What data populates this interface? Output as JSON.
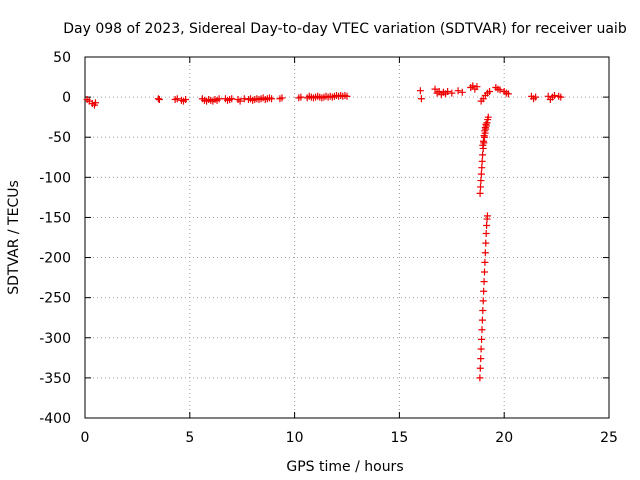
{
  "chart_data": {
    "type": "scatter",
    "title": "Day 098 of 2023, Sidereal Day-to-day VTEC variation (SDTVAR) for receiver uaib",
    "xlabel": "GPS time / hours",
    "ylabel": "SDTVAR / TECUs",
    "xlim": [
      0,
      25
    ],
    "ylim": [
      -400,
      50
    ],
    "xticks": [
      0,
      5,
      10,
      15,
      20,
      25
    ],
    "xtick_labels": [
      "0",
      "5",
      "10",
      "15",
      "20",
      "25"
    ],
    "yticks": [
      50,
      0,
      -50,
      -100,
      -150,
      -200,
      -250,
      -300,
      -350,
      -400
    ],
    "ytick_labels": [
      "50",
      "0",
      "-50",
      "-100",
      "-150",
      "-200",
      "-250",
      "-300",
      "-350",
      "-400"
    ],
    "grid": true,
    "marker": "+",
    "color": "#ee0000",
    "series": [
      {
        "name": "SDTVAR",
        "points": [
          [
            0.1,
            -3
          ],
          [
            0.2,
            -5
          ],
          [
            0.35,
            -8
          ],
          [
            0.45,
            -10
          ],
          [
            0.5,
            -7
          ],
          [
            3.5,
            -2
          ],
          [
            3.55,
            -3
          ],
          [
            4.3,
            -3
          ],
          [
            4.4,
            -2
          ],
          [
            4.6,
            -4
          ],
          [
            4.7,
            -5
          ],
          [
            4.8,
            -3
          ],
          [
            5.6,
            -2
          ],
          [
            5.7,
            -4
          ],
          [
            5.8,
            -5
          ],
          [
            5.9,
            -3
          ],
          [
            6.0,
            -4
          ],
          [
            6.1,
            -5
          ],
          [
            6.2,
            -3
          ],
          [
            6.3,
            -4
          ],
          [
            6.4,
            -2
          ],
          [
            6.7,
            -2
          ],
          [
            6.8,
            -4
          ],
          [
            6.9,
            -3
          ],
          [
            7.0,
            -2
          ],
          [
            7.3,
            -3
          ],
          [
            7.4,
            -5
          ],
          [
            7.6,
            -2
          ],
          [
            7.8,
            -3
          ],
          [
            7.9,
            -2
          ],
          [
            8.0,
            -4
          ],
          [
            8.1,
            -3
          ],
          [
            8.2,
            -2
          ],
          [
            8.3,
            -3
          ],
          [
            8.4,
            -2
          ],
          [
            8.5,
            -1
          ],
          [
            8.6,
            -3
          ],
          [
            8.7,
            -2
          ],
          [
            8.8,
            -1
          ],
          [
            8.9,
            -2
          ],
          [
            9.3,
            -2
          ],
          [
            9.4,
            -1
          ],
          [
            10.2,
            -1
          ],
          [
            10.3,
            0
          ],
          [
            10.6,
            -1
          ],
          [
            10.7,
            1
          ],
          [
            10.8,
            0
          ],
          [
            10.9,
            -1
          ],
          [
            11.0,
            0
          ],
          [
            11.1,
            1
          ],
          [
            11.2,
            0
          ],
          [
            11.3,
            -1
          ],
          [
            11.4,
            0
          ],
          [
            11.5,
            1
          ],
          [
            11.6,
            0
          ],
          [
            11.7,
            1
          ],
          [
            11.8,
            0
          ],
          [
            11.9,
            1
          ],
          [
            12.0,
            2
          ],
          [
            12.1,
            1
          ],
          [
            12.2,
            2
          ],
          [
            12.3,
            1
          ],
          [
            12.4,
            2
          ],
          [
            12.5,
            1
          ],
          [
            16.0,
            8
          ],
          [
            16.05,
            -2
          ],
          [
            16.7,
            10
          ],
          [
            16.8,
            5
          ],
          [
            16.9,
            7
          ],
          [
            17.0,
            3
          ],
          [
            17.1,
            6
          ],
          [
            17.2,
            4
          ],
          [
            17.3,
            7
          ],
          [
            17.5,
            5
          ],
          [
            17.8,
            8
          ],
          [
            18.0,
            6
          ],
          [
            18.4,
            12
          ],
          [
            18.5,
            14
          ],
          [
            18.6,
            10
          ],
          [
            18.7,
            13
          ],
          [
            18.9,
            -5
          ],
          [
            19.0,
            -2
          ],
          [
            19.1,
            2
          ],
          [
            19.2,
            5
          ],
          [
            19.3,
            7
          ],
          [
            19.6,
            12
          ],
          [
            19.7,
            10
          ],
          [
            19.8,
            9
          ],
          [
            20.0,
            7
          ],
          [
            20.1,
            5
          ],
          [
            20.2,
            4
          ],
          [
            21.3,
            1
          ],
          [
            21.4,
            -2
          ],
          [
            21.5,
            0
          ],
          [
            22.1,
            1
          ],
          [
            22.2,
            -3
          ],
          [
            22.3,
            0
          ],
          [
            22.4,
            2
          ],
          [
            22.6,
            1
          ],
          [
            22.7,
            0
          ],
          [
            18.85,
            -120
          ],
          [
            18.87,
            -112
          ],
          [
            18.89,
            -104
          ],
          [
            18.91,
            -96
          ],
          [
            18.93,
            -88
          ],
          [
            18.95,
            -80
          ],
          [
            18.97,
            -72
          ],
          [
            19.0,
            -64
          ],
          [
            19.03,
            -57
          ],
          [
            19.06,
            -50
          ],
          [
            19.09,
            -45
          ],
          [
            19.12,
            -40
          ],
          [
            19.15,
            -36
          ],
          [
            19.18,
            -32
          ],
          [
            19.21,
            -28
          ],
          [
            19.24,
            -25
          ],
          [
            18.98,
            -60
          ],
          [
            19.01,
            -55
          ],
          [
            19.04,
            -48
          ],
          [
            19.07,
            -42
          ],
          [
            19.1,
            -38
          ],
          [
            19.13,
            -34
          ],
          [
            18.84,
            -350
          ],
          [
            18.86,
            -338
          ],
          [
            18.88,
            -326
          ],
          [
            18.9,
            -314
          ],
          [
            18.92,
            -302
          ],
          [
            18.94,
            -290
          ],
          [
            18.96,
            -278
          ],
          [
            18.98,
            -266
          ],
          [
            19.0,
            -254
          ],
          [
            19.02,
            -242
          ],
          [
            19.04,
            -230
          ],
          [
            19.06,
            -218
          ],
          [
            19.08,
            -206
          ],
          [
            19.1,
            -194
          ],
          [
            19.12,
            -182
          ],
          [
            19.14,
            -170
          ],
          [
            19.16,
            -160
          ],
          [
            19.18,
            -152
          ],
          [
            19.2,
            -148
          ]
        ]
      }
    ]
  }
}
